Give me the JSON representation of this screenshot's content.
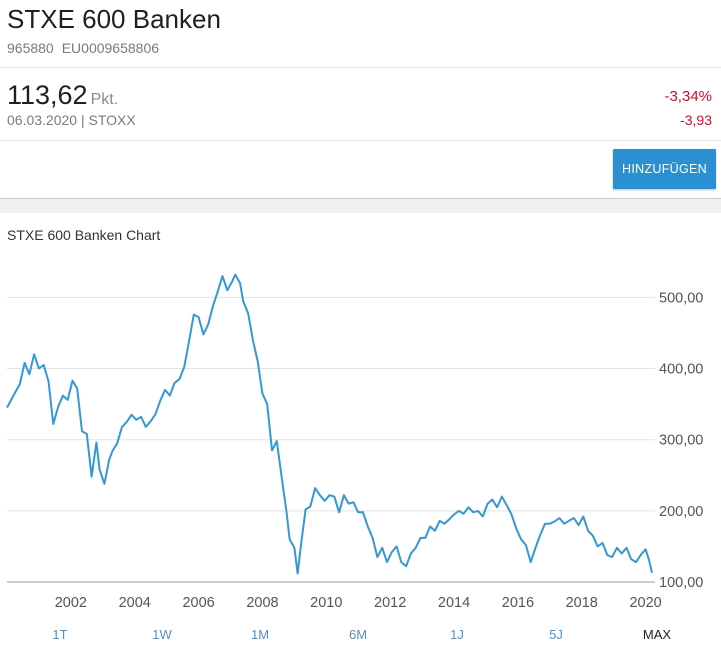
{
  "header": {
    "title": "STXE 600 Banken",
    "wkn": "965880",
    "isin": "EU0009658806",
    "price": "113,62",
    "unit": "Pkt.",
    "date_exchange": "06.03.2020 | STOXX",
    "change_pct": "-3,34%",
    "change_abs": "-3,93",
    "add_button": "HINZUFÜGEN"
  },
  "colors": {
    "accent": "#2b90d1",
    "negative": "#c8102e",
    "line": "#3498d4"
  },
  "chart_data": {
    "type": "line",
    "title": "STXE 600 Banken Chart",
    "xlabel": "",
    "ylabel": "",
    "xlim": [
      2000.0,
      2020.2
    ],
    "ylim": [
      100,
      540
    ],
    "grid": true,
    "x_ticks": [
      "2002",
      "2004",
      "2006",
      "2008",
      "2010",
      "2012",
      "2014",
      "2016",
      "2018",
      "2020"
    ],
    "y_ticks": [
      "100,00",
      "200,00",
      "300,00",
      "400,00",
      "500,00"
    ],
    "series": [
      {
        "x": [
          2000.0,
          2000.2,
          2000.4,
          2000.55,
          2000.7,
          2000.85,
          2001.0,
          2001.15,
          2001.3,
          2001.45,
          2001.6,
          2001.75,
          2001.9,
          2002.05,
          2002.2,
          2002.35,
          2002.5,
          2002.65,
          2002.8,
          2002.9,
          2003.05,
          2003.2,
          2003.3,
          2003.45,
          2003.6,
          2003.75,
          2003.9,
          2004.05,
          2004.2,
          2004.35,
          2004.5,
          2004.65,
          2004.8,
          2004.95,
          2005.1,
          2005.25,
          2005.4,
          2005.55,
          2005.7,
          2005.85,
          2006.0,
          2006.15,
          2006.3,
          2006.45,
          2006.6,
          2006.75,
          2006.9,
          2007.05,
          2007.15,
          2007.3,
          2007.4,
          2007.55,
          2007.7,
          2007.85,
          2008.0,
          2008.15,
          2008.3,
          2008.45,
          2008.6,
          2008.75,
          2008.85,
          2009.0,
          2009.1,
          2009.2,
          2009.35,
          2009.5,
          2009.65,
          2009.8,
          2009.95,
          2010.1,
          2010.25,
          2010.4,
          2010.55,
          2010.7,
          2010.85,
          2011.0,
          2011.15,
          2011.3,
          2011.45,
          2011.6,
          2011.75,
          2011.9,
          2012.05,
          2012.2,
          2012.35,
          2012.5,
          2012.65,
          2012.8,
          2012.95,
          2013.1,
          2013.25,
          2013.4,
          2013.55,
          2013.7,
          2013.85,
          2014.0,
          2014.15,
          2014.3,
          2014.45,
          2014.6,
          2014.75,
          2014.9,
          2015.05,
          2015.2,
          2015.35,
          2015.5,
          2015.65,
          2015.8,
          2015.95,
          2016.1,
          2016.25,
          2016.4,
          2016.55,
          2016.7,
          2016.85,
          2017.0,
          2017.15,
          2017.3,
          2017.45,
          2017.6,
          2017.75,
          2017.9,
          2018.05,
          2018.2,
          2018.35,
          2018.5,
          2018.65,
          2018.8,
          2018.95,
          2019.1,
          2019.25,
          2019.4,
          2019.55,
          2019.7,
          2019.85,
          2020.0,
          2020.1,
          2020.2
        ],
        "values": [
          345,
          362,
          378,
          408,
          392,
          420,
          400,
          405,
          382,
          322,
          346,
          362,
          356,
          383,
          372,
          312,
          308,
          248,
          296,
          258,
          238,
          272,
          284,
          295,
          318,
          325,
          335,
          328,
          332,
          318,
          326,
          336,
          355,
          370,
          362,
          380,
          385,
          402,
          438,
          476,
          472,
          448,
          462,
          488,
          508,
          530,
          510,
          522,
          532,
          520,
          494,
          478,
          440,
          410,
          365,
          350,
          285,
          298,
          248,
          200,
          160,
          148,
          112,
          150,
          202,
          206,
          232,
          222,
          214,
          222,
          220,
          198,
          222,
          210,
          212,
          198,
          198,
          178,
          162,
          135,
          148,
          128,
          142,
          150,
          128,
          122,
          140,
          148,
          162,
          162,
          178,
          172,
          186,
          182,
          188,
          195,
          200,
          196,
          205,
          198,
          200,
          192,
          210,
          216,
          205,
          220,
          208,
          195,
          175,
          160,
          152,
          128,
          148,
          166,
          182,
          182,
          185,
          190,
          182,
          186,
          190,
          180,
          192,
          172,
          165,
          150,
          155,
          138,
          135,
          148,
          140,
          148,
          132,
          128,
          138,
          146,
          132,
          113
        ]
      }
    ]
  },
  "ranges": [
    "1T",
    "1W",
    "1M",
    "6M",
    "1J",
    "5J",
    "MAX"
  ],
  "active_range": "MAX"
}
